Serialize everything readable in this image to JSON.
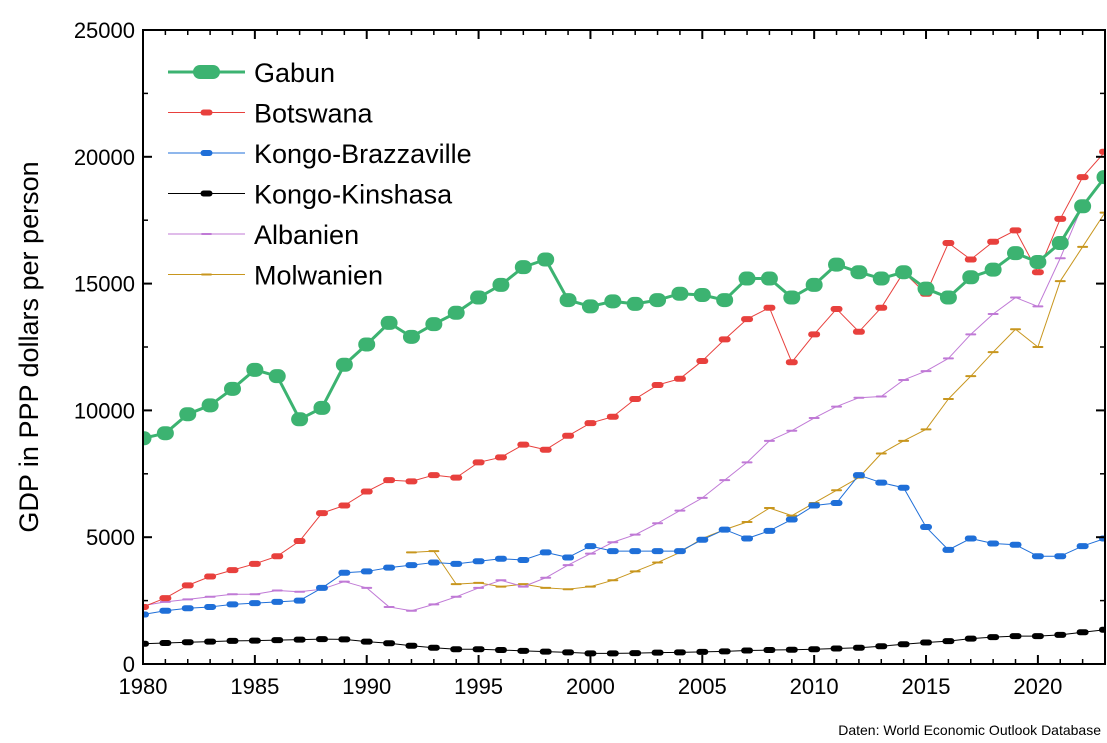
{
  "chart_data": {
    "type": "line",
    "ylabel": "GDP in PPP dollars per person",
    "xlabel": "",
    "xlim": [
      1980,
      2023
    ],
    "ylim": [
      0,
      25000
    ],
    "x_ticks": [
      "1980",
      "1985",
      "1990",
      "1995",
      "2000",
      "2005",
      "2010",
      "2015",
      "2020"
    ],
    "y_ticks": [
      "0",
      "5000",
      "10000",
      "15000",
      "20000",
      "25000"
    ],
    "legend_position": "top-left",
    "source_note": "Daten: World Economic Outlook Database",
    "series": [
      {
        "name": "Gabun",
        "color": "#3cb371",
        "style": "thick",
        "start_year": 1980,
        "values": [
          8900,
          9100,
          9850,
          10200,
          10850,
          11600,
          11350,
          9650,
          10100,
          11800,
          12600,
          13450,
          12900,
          13400,
          13850,
          14450,
          14950,
          15650,
          15950,
          14350,
          14100,
          14300,
          14200,
          14350,
          14600,
          14550,
          14350,
          15200,
          15200,
          14450,
          14950,
          15750,
          15450,
          15200,
          15450,
          14800,
          14450,
          15250,
          15550,
          16200,
          15850,
          16600,
          18050,
          19200
        ]
      },
      {
        "name": "Botswana",
        "color": "#e8403d",
        "style": "medium",
        "start_year": 1980,
        "values": [
          2250,
          2600,
          3100,
          3450,
          3700,
          3950,
          4250,
          4850,
          5950,
          6250,
          6800,
          7250,
          7200,
          7450,
          7350,
          7950,
          8150,
          8650,
          8450,
          9000,
          9500,
          9750,
          10450,
          11000,
          11250,
          11950,
          12800,
          13600,
          14050,
          11900,
          13000,
          14000,
          13100,
          14050,
          15450,
          14600,
          16600,
          15950,
          16650,
          17100,
          15450,
          17550,
          19200,
          20200
        ]
      },
      {
        "name": "Kongo-Brazzaville",
        "color": "#1f6fd8",
        "style": "medium",
        "start_year": 1980,
        "values": [
          1950,
          2100,
          2200,
          2250,
          2350,
          2400,
          2450,
          2500,
          3000,
          3600,
          3650,
          3800,
          3900,
          4000,
          3950,
          4050,
          4150,
          4100,
          4400,
          4200,
          4650,
          4450,
          4450,
          4450,
          4450,
          4900,
          5300,
          4950,
          5250,
          5700,
          6250,
          6350,
          7450,
          7150,
          6950,
          5400,
          4500,
          4950,
          4750,
          4700,
          4250,
          4250,
          4650,
          4950
        ]
      },
      {
        "name": "Kongo-Kinshasa",
        "color": "#000000",
        "style": "medium",
        "start_year": 1980,
        "values": [
          800,
          830,
          860,
          880,
          910,
          920,
          940,
          960,
          980,
          970,
          880,
          820,
          720,
          640,
          580,
          580,
          550,
          520,
          490,
          460,
          420,
          420,
          430,
          450,
          460,
          480,
          500,
          530,
          550,
          560,
          580,
          610,
          640,
          700,
          780,
          850,
          900,
          1000,
          1060,
          1100,
          1100,
          1150,
          1250,
          1350
        ]
      },
      {
        "name": "Albanien",
        "color": "#c07ad6",
        "style": "thin",
        "start_year": 1980,
        "values": [
          2300,
          2450,
          2550,
          2650,
          2750,
          2750,
          2900,
          2850,
          2950,
          3250,
          3000,
          2250,
          2100,
          2350,
          2650,
          3000,
          3300,
          3050,
          3400,
          3900,
          4350,
          4800,
          5100,
          5550,
          6050,
          6550,
          7250,
          7950,
          8800,
          9200,
          9700,
          10150,
          10500,
          10550,
          11200,
          11550,
          12050,
          13000,
          13800,
          14450,
          14100,
          16000,
          18100,
          19200
        ]
      },
      {
        "name": "Molwanien",
        "color": "#c8961e",
        "style": "thin",
        "start_year": 1992,
        "values": [
          4400,
          4450,
          3150,
          3200,
          3050,
          3150,
          3000,
          2950,
          3050,
          3300,
          3650,
          4000,
          4400,
          4950,
          5300,
          5600,
          6150,
          5850,
          6350,
          6850,
          7350,
          8300,
          8800,
          9250,
          10450,
          11350,
          12300,
          13200,
          12500,
          15100,
          16450,
          17800
        ]
      }
    ]
  }
}
